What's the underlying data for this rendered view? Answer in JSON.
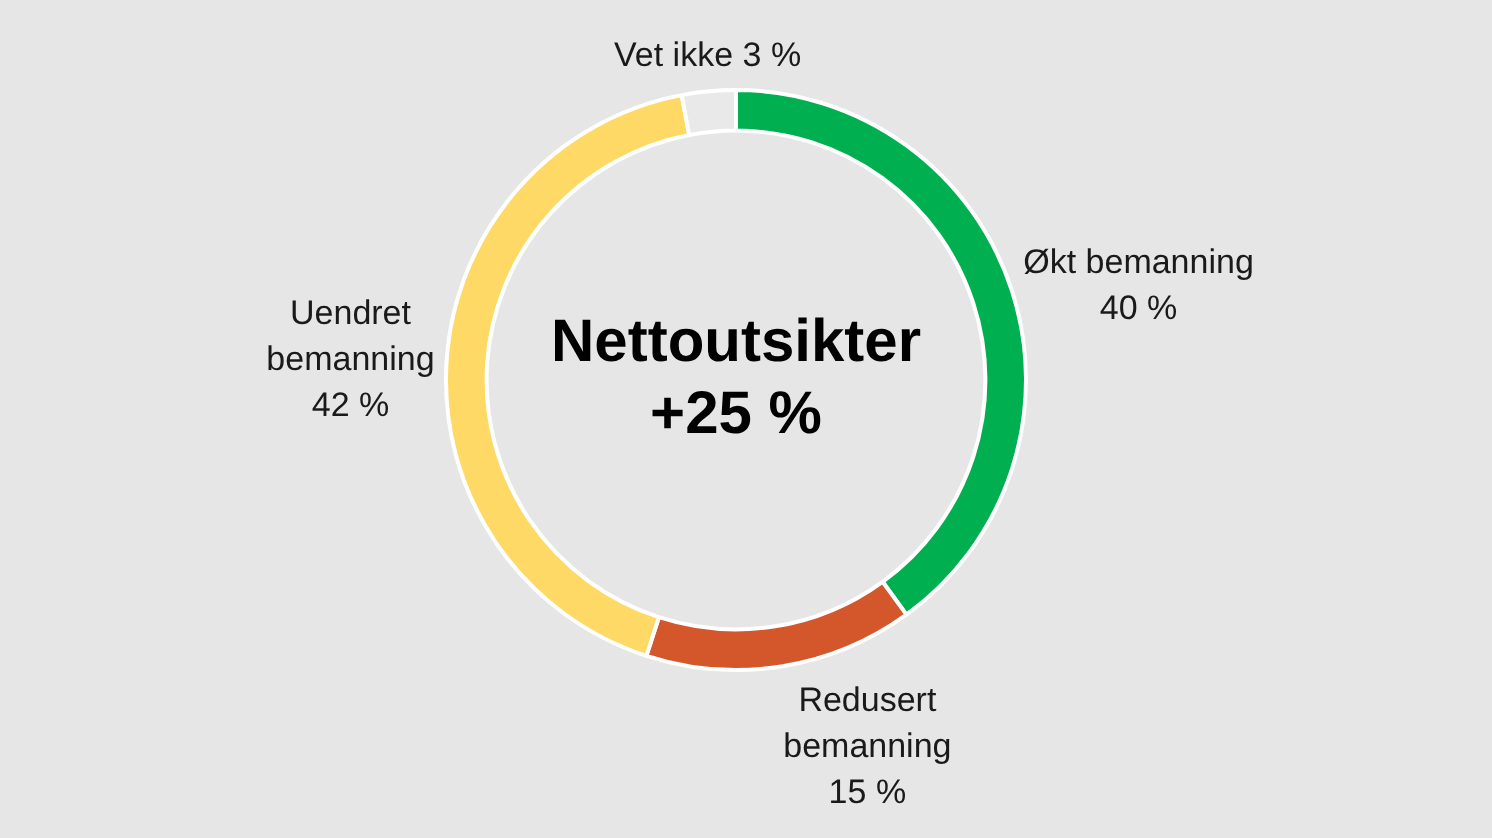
{
  "chart_data": {
    "type": "donut",
    "categories": [
      "Økt bemanning",
      "Redusert bemanning",
      "Uendret bemanning",
      "Vet ikke"
    ],
    "values": [
      40,
      15,
      42,
      3
    ],
    "value_labels": [
      "40 %",
      "15 %",
      "42 %",
      "3 %"
    ],
    "colors": [
      "#00b050",
      "#d4572b",
      "#ffd966",
      "#e9e9e9"
    ],
    "annotations": [
      "Nettoutsikter",
      "+25 %"
    ],
    "legend": false
  }
}
